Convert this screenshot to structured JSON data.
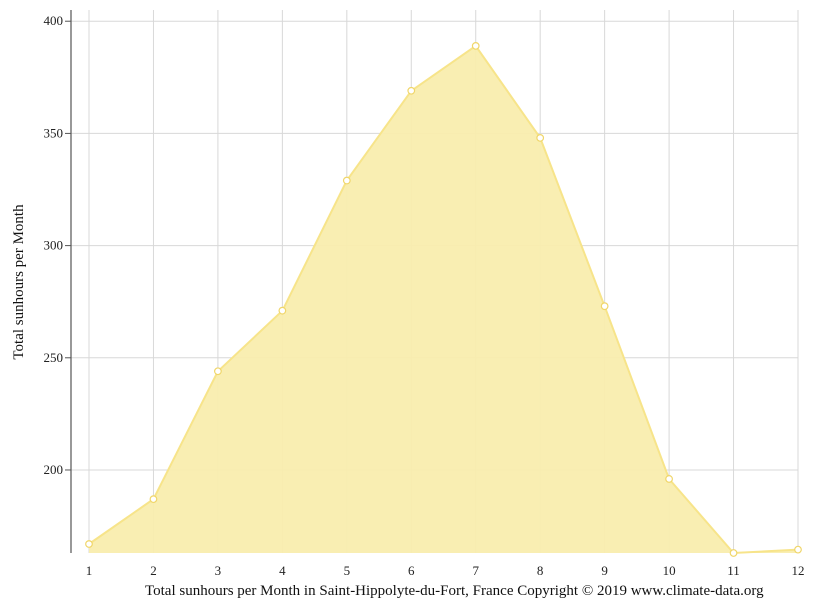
{
  "chart_data": {
    "type": "area",
    "x": [
      "1",
      "2",
      "3",
      "4",
      "5",
      "6",
      "7",
      "8",
      "9",
      "10",
      "11",
      "12"
    ],
    "series": [
      {
        "values": [
          167,
          187,
          244,
          271,
          329,
          369,
          389,
          348,
          273,
          196,
          163,
          164.5
        ]
      }
    ],
    "ylabel": "Total sunhours per Month",
    "xlabel": "",
    "yticks": [
      200,
      250,
      300,
      350,
      400
    ],
    "ylim": [
      163,
      405
    ],
    "grid": true,
    "legend": "none",
    "colors": {
      "fill": "#f9edae",
      "line": "#f7e48a",
      "grid": "#d8d8d8",
      "axis": "#555555"
    }
  },
  "caption": "Total sunhours per Month in Saint-Hippolyte-du-Fort, France Copyright © 2019 www.climate-data.org"
}
